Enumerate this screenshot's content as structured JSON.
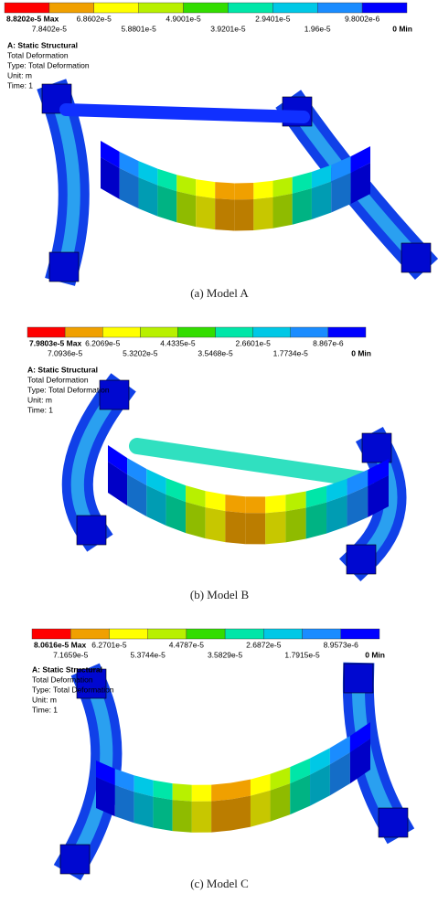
{
  "colormap": [
    "#ff0000",
    "#f0a000",
    "#ffff00",
    "#b8f000",
    "#33dd00",
    "#00e6a8",
    "#00c8e6",
    "#1a8cff",
    "#0000ff"
  ],
  "panels": [
    {
      "legend_top": [
        "8.8202e-5 Max",
        "6.8602e-5",
        "4.9001e-5",
        "2.9401e-5",
        "9.8002e-6"
      ],
      "legend_bottom": [
        "7.8402e-5",
        "5.8801e-5",
        "3.9201e-5",
        "1.96e-5",
        "0 Min"
      ],
      "info": [
        "A: Static Structural",
        "Total Deformation",
        "Type: Total Deformation",
        "Unit: m",
        "Time: 1"
      ],
      "caption": "(a) Model A"
    },
    {
      "legend_top": [
        "7.9803e-5 Max",
        "6.2069e-5",
        "4.4335e-5",
        "2.6601e-5",
        "8.867e-6"
      ],
      "legend_bottom": [
        "7.0936e-5",
        "5.3202e-5",
        "3.5468e-5",
        "1.7734e-5",
        "0 Min"
      ],
      "info": [
        "A: Static Structural",
        "Total Deformation",
        "Type: Total Deformation",
        "Unit: m",
        "Time: 1"
      ],
      "caption": "(b) Model B"
    },
    {
      "legend_top": [
        "8.0616e-5 Max",
        "6.2701e-5",
        "4.4787e-5",
        "2.6872e-5",
        "8.9573e-6"
      ],
      "legend_bottom": [
        "7.1659e-5",
        "5.3744e-5",
        "3.5829e-5",
        "1.7915e-5",
        "0 Min"
      ],
      "info": [
        "A: Static Structural",
        "Total Deformation",
        "Type: Total Deformation",
        "Unit: m",
        "Time: 1"
      ],
      "caption": "(c) Model C"
    }
  ]
}
